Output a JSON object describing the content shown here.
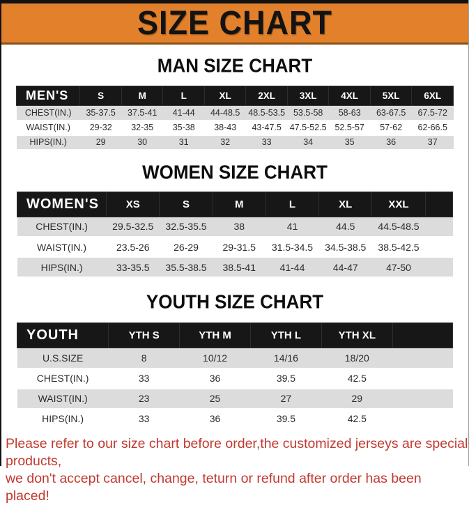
{
  "banner": {
    "title": "SIZE CHART"
  },
  "colors": {
    "banner_orange": "#e2802b",
    "header_black": "#171717",
    "row_gray": "#dcdcdc",
    "footer_red": "#c2392f"
  },
  "sections": [
    {
      "id": "men",
      "heading": "MAN SIZE CHART",
      "columns": [
        "MEN'S",
        "S",
        "M",
        "L",
        "XL",
        "2XL",
        "3XL",
        "4XL",
        "5XL",
        "6XL"
      ],
      "rows": [
        {
          "label": "CHEST(IN.)",
          "values": [
            "35-37.5",
            "37.5-41",
            "41-44",
            "44-48.5",
            "48.5-53.5",
            "53.5-58",
            "58-63",
            "63-67.5",
            "67.5-72"
          ]
        },
        {
          "label": "WAIST(IN.)",
          "values": [
            "29-32",
            "32-35",
            "35-38",
            "38-43",
            "43-47.5",
            "47.5-52.5",
            "52.5-57",
            "57-62",
            "62-66.5"
          ]
        },
        {
          "label": "HIPS(IN.)",
          "values": [
            "29",
            "30",
            "31",
            "32",
            "33",
            "34",
            "35",
            "36",
            "37"
          ]
        }
      ]
    },
    {
      "id": "women",
      "heading": "WOMEN SIZE CHART",
      "columns": [
        "WOMEN'S",
        "XS",
        "S",
        "M",
        "L",
        "XL",
        "XXL"
      ],
      "rows": [
        {
          "label": "CHEST(IN.)",
          "values": [
            "29.5-32.5",
            "32.5-35.5",
            "38",
            "41",
            "44.5",
            "44.5-48.5"
          ]
        },
        {
          "label": "WAIST(IN.)",
          "values": [
            "23.5-26",
            "26-29",
            "29-31.5",
            "31.5-34.5",
            "34.5-38.5",
            "38.5-42.5"
          ]
        },
        {
          "label": "HIPS(IN.)",
          "values": [
            "33-35.5",
            "35.5-38.5",
            "38.5-41",
            "41-44",
            "44-47",
            "47-50"
          ]
        }
      ]
    },
    {
      "id": "youth",
      "heading": "YOUTH SIZE CHART",
      "columns": [
        "YOUTH",
        "YTH S",
        "YTH M",
        "YTH L",
        "YTH XL"
      ],
      "rows": [
        {
          "label": "U.S.SIZE",
          "values": [
            "8",
            "10/12",
            "14/16",
            "18/20"
          ]
        },
        {
          "label": "CHEST(IN.)",
          "values": [
            "33",
            "36",
            "39.5",
            "42.5"
          ]
        },
        {
          "label": "WAIST(IN.)",
          "values": [
            "23",
            "25",
            "27",
            "29"
          ]
        },
        {
          "label": "HIPS(IN.)",
          "values": [
            "33",
            "36",
            "39.5",
            "42.5"
          ]
        }
      ]
    }
  ],
  "footer": {
    "line1": "Please refer to our size chart before order,the customized jerseys are special products,",
    "line2": "we don't accept cancel, change, teturn or refund after order has been placed!"
  }
}
